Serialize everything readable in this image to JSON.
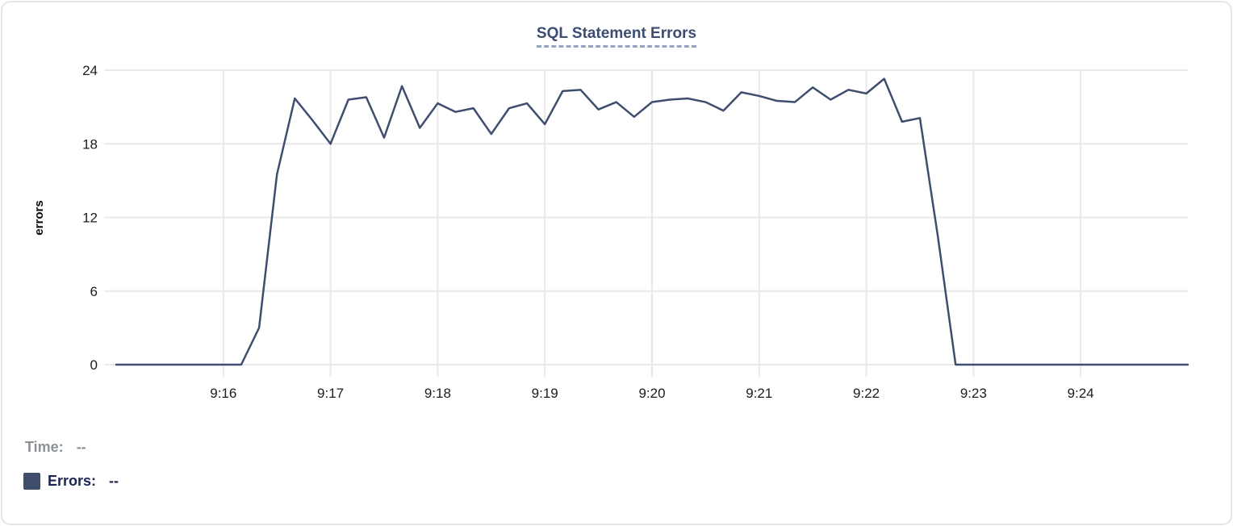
{
  "chart_data": {
    "type": "line",
    "title": "SQL Statement Errors",
    "ylabel": "errors",
    "ylim": [
      0,
      24
    ],
    "y_ticks": [
      0,
      6,
      12,
      18,
      24
    ],
    "x_ticks": [
      "9:16",
      "9:17",
      "9:18",
      "9:19",
      "9:20",
      "9:21",
      "9:22",
      "9:23",
      "9:24"
    ],
    "x_domain": [
      "9:15:00",
      "9:25:00"
    ],
    "grid": true,
    "legend_position": "bottom-left",
    "series": [
      {
        "name": "Errors",
        "color": "#3f4e6e",
        "times": [
          "9:15:00",
          "9:15:10",
          "9:15:20",
          "9:15:30",
          "9:15:40",
          "9:15:50",
          "9:16:00",
          "9:16:10",
          "9:16:20",
          "9:16:30",
          "9:16:40",
          "9:16:50",
          "9:17:00",
          "9:17:10",
          "9:17:20",
          "9:17:30",
          "9:17:40",
          "9:17:50",
          "9:18:00",
          "9:18:10",
          "9:18:20",
          "9:18:30",
          "9:18:40",
          "9:18:50",
          "9:19:00",
          "9:19:10",
          "9:19:20",
          "9:19:30",
          "9:19:40",
          "9:19:50",
          "9:20:00",
          "9:20:10",
          "9:20:20",
          "9:20:30",
          "9:20:40",
          "9:20:50",
          "9:21:00",
          "9:21:10",
          "9:21:20",
          "9:21:30",
          "9:21:40",
          "9:21:50",
          "9:22:00",
          "9:22:10",
          "9:22:20",
          "9:22:30",
          "9:22:40",
          "9:22:50",
          "9:23:00",
          "9:23:10",
          "9:23:20",
          "9:23:30",
          "9:23:40",
          "9:23:50",
          "9:24:00",
          "9:24:10",
          "9:24:20",
          "9:24:30",
          "9:24:40",
          "9:24:50",
          "9:25:00"
        ],
        "values": [
          0,
          0,
          0,
          0,
          0,
          0,
          0,
          0,
          3,
          15.5,
          21.7,
          19.9,
          18,
          21.6,
          21.8,
          18.5,
          22.7,
          19.3,
          21.3,
          20.6,
          20.9,
          18.8,
          20.9,
          21.3,
          19.6,
          22.3,
          22.4,
          20.8,
          21.4,
          20.2,
          21.4,
          21.6,
          21.7,
          21.4,
          20.7,
          22.2,
          21.9,
          21.5,
          21.4,
          22.6,
          21.6,
          22.4,
          22.1,
          23.3,
          19.8,
          20.1,
          10.5,
          0,
          0,
          0,
          0,
          0,
          0,
          0,
          0,
          0,
          0,
          0,
          0,
          0,
          0
        ]
      }
    ]
  },
  "readout": {
    "time_label": "Time:",
    "time_value": "--",
    "errors_label": "Errors:",
    "errors_value": "--"
  },
  "colors": {
    "grid": "#e9e9e9",
    "line": "#3f4e6e",
    "title": "#3b4d71",
    "title_underline": "#97a3c2",
    "gray_text": "#8b9097",
    "navy_text": "#1a2550",
    "card_border": "#e4e6e9"
  }
}
